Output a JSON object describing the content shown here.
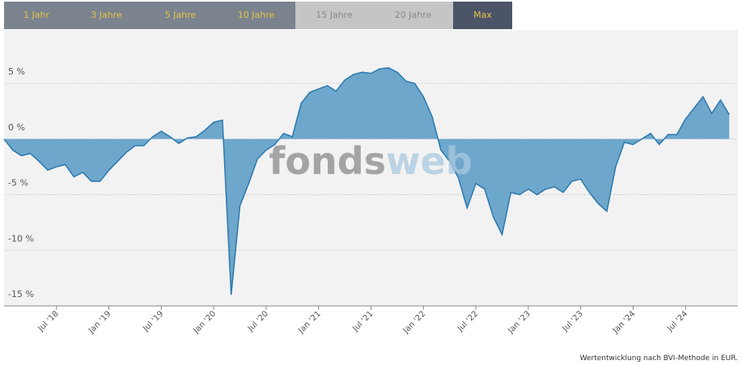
{
  "tabs": [
    "1 Jahr",
    "3 Jahre",
    "5 Jahre",
    "10 Jahre",
    "15 Jahre",
    "20 Jahre",
    "Max"
  ],
  "chart_data": {
    "type": "area",
    "watermark": {
      "part1": "fonds",
      "part2": "web"
    },
    "note": "Wertentwicklung nach BVI-Methode in EUR.",
    "color": "#6ea7cc",
    "line_color": "#2b78ae",
    "grid": true,
    "x": [
      "2018-01",
      "2018-02",
      "2018-03",
      "2018-04",
      "2018-05",
      "2018-06",
      "2018-07",
      "2018-08",
      "2018-09",
      "2018-10",
      "2018-11",
      "2018-12",
      "2019-01",
      "2019-02",
      "2019-03",
      "2019-04",
      "2019-05",
      "2019-06",
      "2019-07",
      "2019-08",
      "2019-09",
      "2019-10",
      "2019-11",
      "2019-12",
      "2020-01",
      "2020-02",
      "2020-03",
      "2020-04",
      "2020-05",
      "2020-06",
      "2020-07",
      "2020-08",
      "2020-09",
      "2020-10",
      "2020-11",
      "2020-12",
      "2021-01",
      "2021-02",
      "2021-03",
      "2021-04",
      "2021-05",
      "2021-06",
      "2021-07",
      "2021-08",
      "2021-09",
      "2021-10",
      "2021-11",
      "2021-12",
      "2022-01",
      "2022-02",
      "2022-03",
      "2022-04",
      "2022-05",
      "2022-06",
      "2022-07",
      "2022-08",
      "2022-09",
      "2022-10",
      "2022-11",
      "2022-12",
      "2023-01",
      "2023-02",
      "2023-03",
      "2023-04",
      "2023-05",
      "2023-06",
      "2023-07",
      "2023-08",
      "2023-09",
      "2023-10",
      "2023-11",
      "2023-12",
      "2024-01",
      "2024-02",
      "2024-03",
      "2024-04",
      "2024-05",
      "2024-06",
      "2024-07",
      "2024-08",
      "2024-09",
      "2024-10",
      "2024-11",
      "2024-12"
    ],
    "values": [
      0,
      -1.0,
      -1.5,
      -1.3,
      -2.0,
      -2.8,
      -2.5,
      -2.3,
      -3.4,
      -3.0,
      -3.8,
      -3.8,
      -2.8,
      -2.0,
      -1.2,
      -0.6,
      -0.6,
      0.2,
      0.7,
      0.2,
      -0.4,
      0.1,
      0.2,
      0.8,
      1.5,
      1.7,
      -14.0,
      -6.0,
      -4.0,
      -1.8,
      -1.0,
      -0.5,
      0.5,
      0.2,
      3.2,
      4.2,
      4.5,
      4.8,
      4.3,
      5.3,
      5.8,
      6.0,
      5.9,
      6.3,
      6.4,
      6.0,
      5.2,
      5.0,
      3.8,
      2.0,
      -1.0,
      -2.0,
      -3.5,
      -6.2,
      -4.0,
      -4.5,
      -7.0,
      -8.6,
      -4.8,
      -5.0,
      -4.5,
      -5.0,
      -4.5,
      -4.3,
      -4.8,
      -3.8,
      -3.6,
      -4.8,
      -5.8,
      -6.5,
      -2.5,
      -0.3,
      -0.5,
      0.0,
      0.5,
      -0.5,
      0.4,
      0.4,
      1.8,
      2.8,
      3.8,
      2.3,
      3.5,
      2.2
    ],
    "xlim": [
      "2018-01",
      "2024-12"
    ],
    "xticks": [
      {
        "value": "2018-07",
        "label": "Jul '18"
      },
      {
        "value": "2019-01",
        "label": "Jan '19"
      },
      {
        "value": "2019-07",
        "label": "Jul '19"
      },
      {
        "value": "2020-01",
        "label": "Jan '20"
      },
      {
        "value": "2020-07",
        "label": "Jul '20"
      },
      {
        "value": "2021-01",
        "label": "Jan '21"
      },
      {
        "value": "2021-07",
        "label": "Jul '21"
      },
      {
        "value": "2022-01",
        "label": "Jan '22"
      },
      {
        "value": "2022-07",
        "label": "Jul '22"
      },
      {
        "value": "2023-01",
        "label": "Jan '23"
      },
      {
        "value": "2023-07",
        "label": "Jul '23"
      },
      {
        "value": "2024-01",
        "label": "Jan '24"
      },
      {
        "value": "2024-07",
        "label": "Jul '24"
      }
    ],
    "ylim": [
      -15,
      9.8
    ],
    "yticks": [
      {
        "value": 5,
        "label": "5 %"
      },
      {
        "value": 0,
        "label": "0 %"
      },
      {
        "value": -5,
        "label": "-5 %"
      },
      {
        "value": -10,
        "label": "-10 %"
      },
      {
        "value": -15,
        "label": "-15 %"
      }
    ]
  }
}
